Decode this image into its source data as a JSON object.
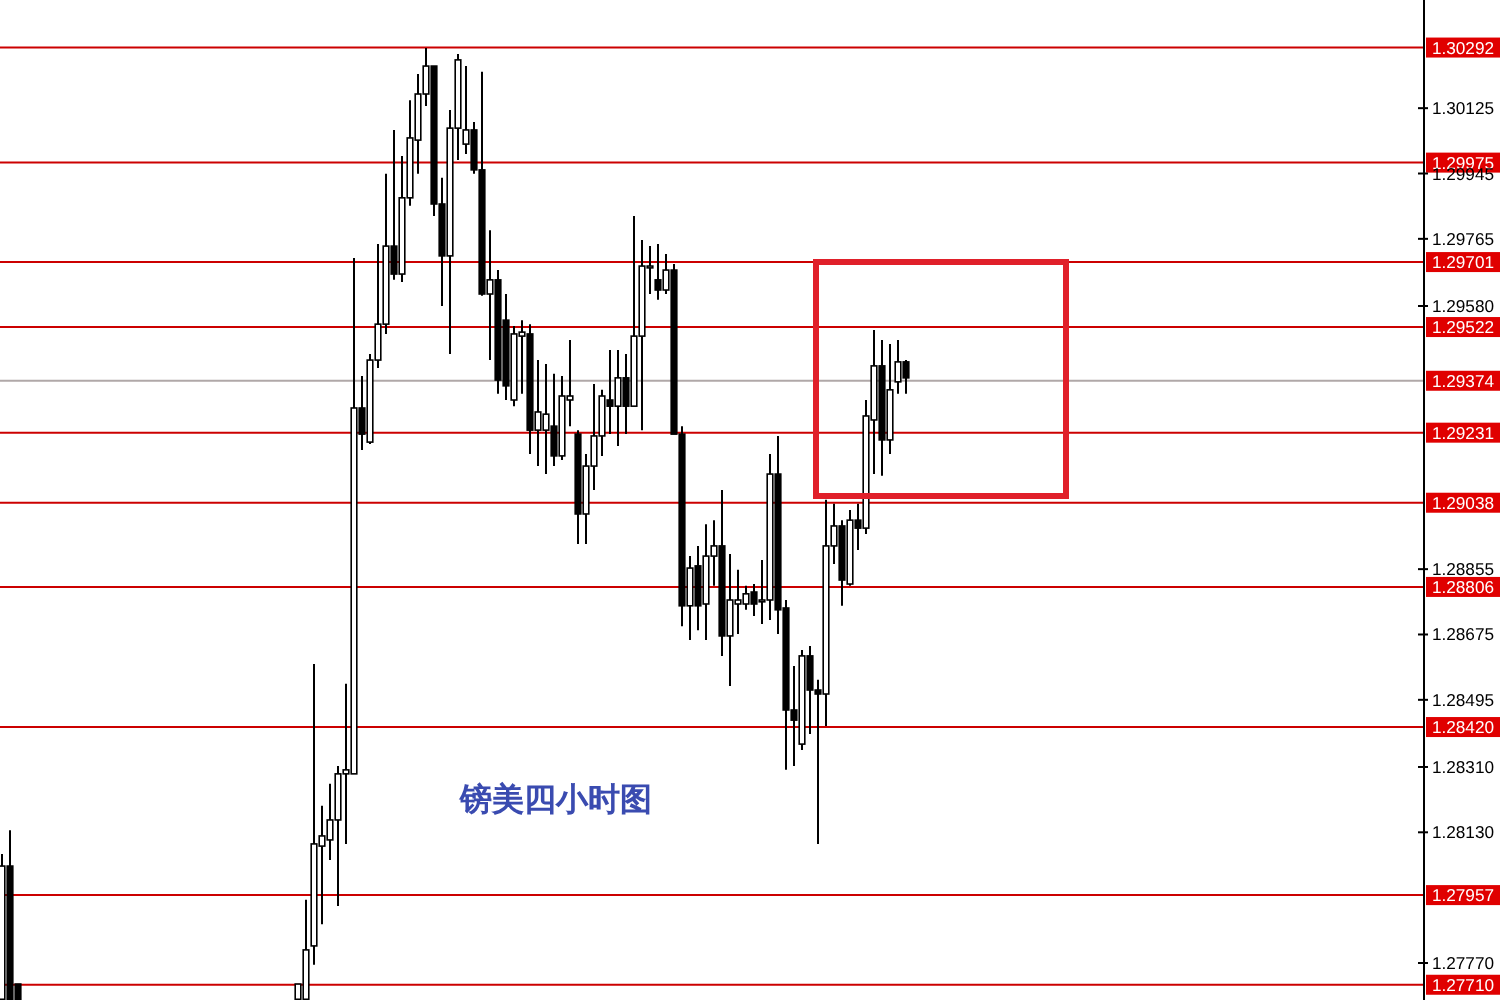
{
  "chart_data": {
    "type": "candlestick",
    "title": "镑美四小时图",
    "categories": [
      null,
      null,
      null,
      null,
      null,
      null,
      null,
      null,
      null,
      null,
      null,
      null,
      null,
      null,
      null,
      null,
      null,
      null,
      null,
      null,
      null,
      null,
      null,
      null,
      null,
      null,
      null,
      null,
      null,
      null,
      null,
      null,
      null,
      null,
      null,
      null,
      null,
      null,
      null,
      null,
      null,
      null,
      null,
      null,
      null,
      null,
      null,
      null,
      null,
      null,
      null,
      null,
      null,
      null,
      null,
      null,
      null,
      null,
      null,
      null,
      null,
      null,
      null,
      null,
      null,
      null,
      null,
      null,
      null,
      null,
      null,
      null,
      null,
      null,
      null,
      null,
      null,
      null,
      null,
      null,
      null,
      null,
      null,
      null,
      null,
      null,
      null,
      null,
      null,
      null,
      null,
      null,
      null,
      null,
      null,
      null,
      null,
      null,
      null,
      null,
      null,
      null,
      null,
      null,
      null,
      null,
      null,
      null,
      null,
      null,
      null,
      null,
      null,
      null,
      null,
      null,
      null,
      null,
      null,
      null,
      null,
      null,
      null,
      null,
      null,
      null,
      null,
      null,
      null,
      null,
      null,
      null,
      null,
      null,
      null,
      null,
      null,
      null,
      null,
      null,
      null,
      null,
      null,
      null,
      null,
      null,
      null,
      null,
      null,
      null,
      null,
      null,
      null,
      null,
      null,
      null,
      null,
      null,
      null,
      null,
      null,
      null,
      null,
      null,
      null,
      null,
      null,
      null,
      null,
      null,
      null,
      null,
      null,
      null,
      null,
      null,
      null,
      null
    ],
    "ohlc": [
      [
        1.2767,
        1.2807,
        1.2767,
        1.28037
      ],
      [
        1.28037,
        1.28136,
        1.2767,
        1.2767
      ],
      [
        1.27712,
        1.27712,
        1.2767,
        1.2767
      ],
      null,
      null,
      null,
      null,
      null,
      null,
      null,
      null,
      null,
      null,
      null,
      null,
      null,
      null,
      null,
      null,
      null,
      null,
      null,
      null,
      null,
      null,
      null,
      null,
      null,
      null,
      null,
      null,
      null,
      null,
      null,
      null,
      null,
      null,
      [
        1.2767,
        1.27712,
        1.2767,
        1.27712
      ],
      [
        1.2767,
        1.27944,
        1.2767,
        1.27806
      ],
      [
        1.27817,
        1.28594,
        1.27765,
        1.28098
      ],
      [
        1.28092,
        1.28203,
        1.27877,
        1.2812
      ],
      [
        1.28109,
        1.28264,
        1.28054,
        1.28164
      ],
      [
        1.28164,
        1.28313,
        1.27927,
        1.28291
      ],
      [
        1.28291,
        1.28539,
        1.28098,
        1.28302
      ],
      [
        1.28291,
        1.29712,
        1.28291,
        1.29299
      ],
      [
        1.29299,
        1.29387,
        1.29183,
        1.29227
      ],
      [
        1.29205,
        1.29448,
        1.292,
        1.29431
      ],
      [
        1.29431,
        1.29751,
        1.29409,
        1.2953
      ],
      [
        1.2953,
        1.29944,
        1.29503,
        1.29745
      ],
      [
        1.29745,
        1.30065,
        1.29652,
        1.29668
      ],
      [
        1.29668,
        1.29993,
        1.29646,
        1.29878
      ],
      [
        1.29878,
        1.30147,
        1.29856,
        1.30043
      ],
      [
        1.30037,
        1.30219,
        1.29944,
        1.30164
      ],
      [
        1.30164,
        1.30291,
        1.30131,
        1.30241
      ],
      [
        1.30241,
        1.30241,
        1.29828,
        1.29861
      ],
      [
        1.29861,
        1.29933,
        1.2958,
        1.29718
      ],
      [
        1.29718,
        1.3012,
        1.29448,
        1.3007
      ],
      [
        1.3007,
        1.30274,
        1.29982,
        1.30258
      ],
      [
        1.30026,
        1.30241,
        1.29999,
        1.30065
      ],
      [
        1.30065,
        1.30087,
        1.29944,
        1.29955
      ],
      [
        1.29955,
        1.30225,
        1.29608,
        1.29613
      ],
      [
        1.29613,
        1.29789,
        1.29431,
        1.29652
      ],
      [
        1.29652,
        1.29679,
        1.29338,
        1.29376
      ],
      [
        1.29541,
        1.29613,
        1.29321,
        1.2936
      ],
      [
        1.29321,
        1.29525,
        1.29304,
        1.29503
      ],
      [
        1.29497,
        1.29541,
        1.29338,
        1.29508
      ],
      [
        1.29503,
        1.2953,
        1.29172,
        1.29238
      ],
      [
        1.29238,
        1.29431,
        1.29139,
        1.29288
      ],
      [
        1.29238,
        1.2942,
        1.29117,
        1.29282
      ],
      [
        1.29249,
        1.29393,
        1.29139,
        1.29167
      ],
      [
        1.29167,
        1.29387,
        1.29156,
        1.29332
      ],
      [
        1.29321,
        1.29486,
        1.29249,
        1.29332
      ],
      [
        1.29227,
        1.29238,
        1.28924,
        1.29007
      ],
      [
        1.29007,
        1.29172,
        1.28924,
        1.29139
      ],
      [
        1.29139,
        1.29365,
        1.29073,
        1.29222
      ],
      [
        1.29222,
        1.29349,
        1.29167,
        1.29332
      ],
      [
        1.29321,
        1.29459,
        1.29227,
        1.29304
      ],
      [
        1.29304,
        1.29459,
        1.29194,
        1.29382
      ],
      [
        1.29382,
        1.29448,
        1.29227,
        1.29304
      ],
      [
        1.29304,
        1.29828,
        1.29304,
        1.29497
      ],
      [
        1.29497,
        1.29762,
        1.29238,
        1.2969
      ],
      [
        1.29685,
        1.29745,
        1.29613,
        1.2969
      ],
      [
        1.29652,
        1.29751,
        1.29597,
        1.29624
      ],
      [
        1.29624,
        1.29723,
        1.29613,
        1.29679
      ],
      [
        1.29679,
        1.29696,
        1.29227,
        1.29227
      ],
      [
        1.29227,
        1.29249,
        1.28698,
        1.28754
      ],
      [
        1.28754,
        1.28891,
        1.2866,
        1.28858
      ],
      [
        1.28864,
        1.28919,
        1.28687,
        1.28754
      ],
      [
        1.28759,
        1.28979,
        1.2866,
        1.28891
      ],
      [
        1.28891,
        1.2899,
        1.28809,
        1.28919
      ],
      [
        1.28919,
        1.29073,
        1.28616,
        1.28671
      ],
      [
        1.28671,
        1.28897,
        1.28533,
        1.2877
      ],
      [
        1.28759,
        1.28853,
        1.28676,
        1.2877
      ],
      [
        1.28759,
        1.28809,
        1.28743,
        1.28787
      ],
      [
        1.28792,
        1.28814,
        1.28726,
        1.28759
      ],
      [
        1.28765,
        1.2888,
        1.28704,
        1.2877
      ],
      [
        1.2877,
        1.29172,
        1.28715,
        1.29117
      ],
      [
        1.29117,
        1.29222,
        1.28676,
        1.28743
      ],
      [
        1.28748,
        1.2877,
        1.28302,
        1.28467
      ],
      [
        1.28467,
        1.28588,
        1.28313,
        1.28439
      ],
      [
        1.28373,
        1.28632,
        1.28357,
        1.28616
      ],
      [
        1.28616,
        1.28643,
        1.28401,
        1.28522
      ],
      [
        1.28522,
        1.2855,
        1.28098,
        1.28511
      ],
      [
        1.28511,
        1.29046,
        1.28423,
        1.28919
      ],
      [
        1.28919,
        1.29035,
        1.28869,
        1.28974
      ],
      [
        1.28974,
        1.2899,
        1.28754,
        1.28825
      ],
      [
        1.28814,
        1.29018,
        1.28809,
        1.2899
      ],
      [
        1.2899,
        1.29035,
        1.28908,
        1.28968
      ],
      [
        1.28968,
        1.29321,
        1.28952,
        1.29277
      ],
      [
        1.29266,
        1.29514,
        1.29117,
        1.29415
      ],
      [
        1.29415,
        1.29486,
        1.29112,
        1.29211
      ],
      [
        1.29211,
        1.29475,
        1.29172,
        1.29349
      ],
      [
        1.29371,
        1.29486,
        1.29338,
        1.29426
      ],
      [
        1.29426,
        1.29431,
        1.29338,
        1.29382
      ],
      null,
      null,
      null,
      null,
      null,
      null,
      null,
      null,
      null,
      null,
      null,
      null,
      null,
      null,
      null,
      null,
      null,
      null,
      null,
      null,
      null,
      null,
      null,
      null,
      null,
      null,
      null,
      null,
      null,
      null,
      null,
      null,
      null,
      null,
      null,
      null,
      null,
      null,
      null,
      null,
      null,
      null,
      null,
      null,
      null,
      null,
      null,
      null,
      null,
      null,
      null,
      null,
      null,
      null,
      null,
      null,
      null,
      null,
      null,
      null,
      null,
      null,
      null,
      null
    ],
    "ylim": [
      1.27668,
      1.30423
    ],
    "yticks": [
      1.30125,
      1.29945,
      1.29765,
      {
        "value": 1.2958,
        "label": "1.29580"
      },
      1.28855,
      1.28675,
      1.28495,
      {
        "value": 1.2831,
        "label": "1.28310"
      },
      {
        "value": 1.2813,
        "label": "1.28130"
      },
      {
        "value": 1.2777,
        "label": "1.27770"
      }
    ],
    "tick_labels": "y",
    "ref_lines": [
      {
        "axis": "y",
        "value": 1.30292,
        "label": "1.30292",
        "color": "#cc0000"
      },
      {
        "axis": "y",
        "value": 1.29975,
        "label": "1.29975",
        "color": "#cc0000"
      },
      {
        "axis": "y",
        "value": 1.29701,
        "label": "1.29701",
        "color": "#cc0000"
      },
      {
        "axis": "y",
        "value": 1.29522,
        "label": "1.29522",
        "color": "#cc0000"
      },
      {
        "axis": "y",
        "value": 1.29374,
        "label": "1.29374",
        "color": "#b0a8a8"
      },
      {
        "axis": "y",
        "value": 1.29231,
        "label": "1.29231",
        "color": "#cc0000"
      },
      {
        "axis": "y",
        "value": 1.29038,
        "label": "1.29038",
        "color": "#cc0000"
      },
      {
        "axis": "y",
        "value": 1.28806,
        "label": "1.28806",
        "color": "#cc0000"
      },
      {
        "axis": "y",
        "value": 1.2842,
        "label": "1.28420",
        "color": "#cc0000"
      },
      {
        "axis": "y",
        "value": 1.27957,
        "label": "1.27957",
        "color": "#cc0000"
      },
      {
        "axis": "y",
        "value": 1.2771,
        "label": "1.27710",
        "color": "#cc0000"
      }
    ]
  }
}
